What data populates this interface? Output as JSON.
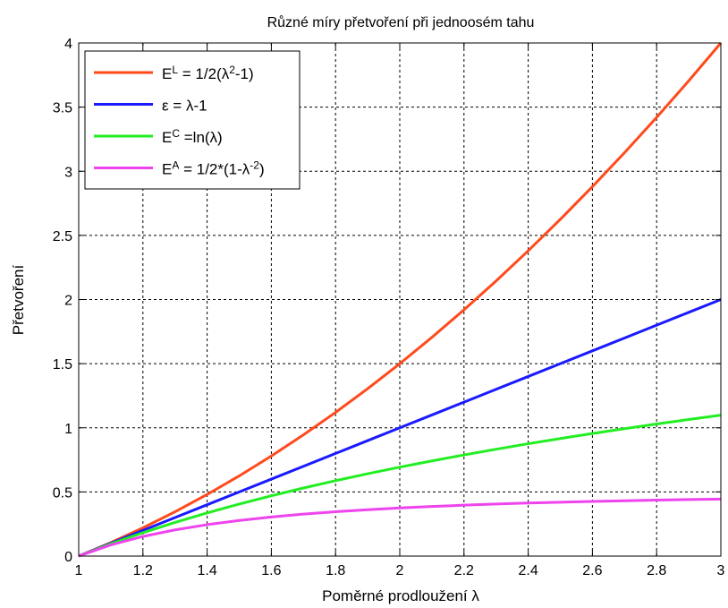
{
  "chart_data": {
    "type": "line",
    "title": "Různé míry přetvoření při jednoosém tahu",
    "xlabel": "Poměrné prodloužení λ",
    "ylabel": "Přetvoření",
    "xlim": [
      1,
      3
    ],
    "ylim": [
      0,
      4
    ],
    "xticks": [
      1,
      1.2,
      1.4,
      1.6,
      1.8,
      2,
      2.2,
      2.4,
      2.6,
      2.8,
      3
    ],
    "xtick_labels": [
      "1",
      "1.2",
      "1.4",
      "1.6",
      "1.8",
      "2",
      "2.2",
      "2.4",
      "2.6",
      "2.8",
      "3"
    ],
    "yticks": [
      0,
      0.5,
      1,
      1.5,
      2,
      2.5,
      3,
      3.5,
      4
    ],
    "ytick_labels": [
      "0",
      "0.5",
      "1",
      "1.5",
      "2",
      "2.5",
      "3",
      "3.5",
      "4"
    ],
    "grid": true,
    "legend_position": "top-left",
    "x": [
      1,
      1.1,
      1.2,
      1.3,
      1.4,
      1.5,
      1.6,
      1.7,
      1.8,
      1.9,
      2,
      2.1,
      2.2,
      2.3,
      2.4,
      2.5,
      2.6,
      2.7,
      2.8,
      2.9,
      3
    ],
    "series": [
      {
        "legend": {
          "main": "E",
          "sup": "L",
          "rest1": " = 1/2(λ",
          "sup2": "2",
          "rest2": "-1)"
        },
        "color": "#ff4a1c",
        "values": [
          0,
          0.105,
          0.22,
          0.345,
          0.48,
          0.625,
          0.78,
          0.945,
          1.12,
          1.305,
          1.5,
          1.705,
          1.92,
          2.145,
          2.38,
          2.625,
          2.88,
          3.145,
          3.42,
          3.705,
          4
        ]
      },
      {
        "legend": {
          "main": "ε = λ-1",
          "sup": "",
          "rest1": "",
          "sup2": "",
          "rest2": ""
        },
        "color": "#1a1aff",
        "values": [
          0,
          0.1,
          0.2,
          0.3,
          0.4,
          0.5,
          0.6,
          0.7,
          0.8,
          0.9,
          1,
          1.1,
          1.2,
          1.3,
          1.4,
          1.5,
          1.6,
          1.7,
          1.8,
          1.9,
          2
        ]
      },
      {
        "legend": {
          "main": "E",
          "sup": "C",
          "rest1": " =ln(λ)",
          "sup2": "",
          "rest2": ""
        },
        "color": "#22ee22",
        "values": [
          0,
          0.0953,
          0.1823,
          0.2624,
          0.3365,
          0.4055,
          0.47,
          0.5306,
          0.5878,
          0.6419,
          0.6931,
          0.7419,
          0.7885,
          0.8329,
          0.8755,
          0.9163,
          0.9555,
          0.9933,
          1.0296,
          1.0647,
          1.0986
        ]
      },
      {
        "legend": {
          "main": "E",
          "sup": "A",
          "rest1": " = 1/2*(1-λ",
          "sup2": "-2",
          "rest2": ")"
        },
        "color": "#ee44ee",
        "values": [
          0,
          0.0868,
          0.1528,
          0.2041,
          0.2449,
          0.2778,
          0.3047,
          0.327,
          0.3457,
          0.3615,
          0.375,
          0.3866,
          0.3967,
          0.4055,
          0.4132,
          0.42,
          0.426,
          0.4314,
          0.4362,
          0.4405,
          0.4444
        ]
      }
    ]
  }
}
